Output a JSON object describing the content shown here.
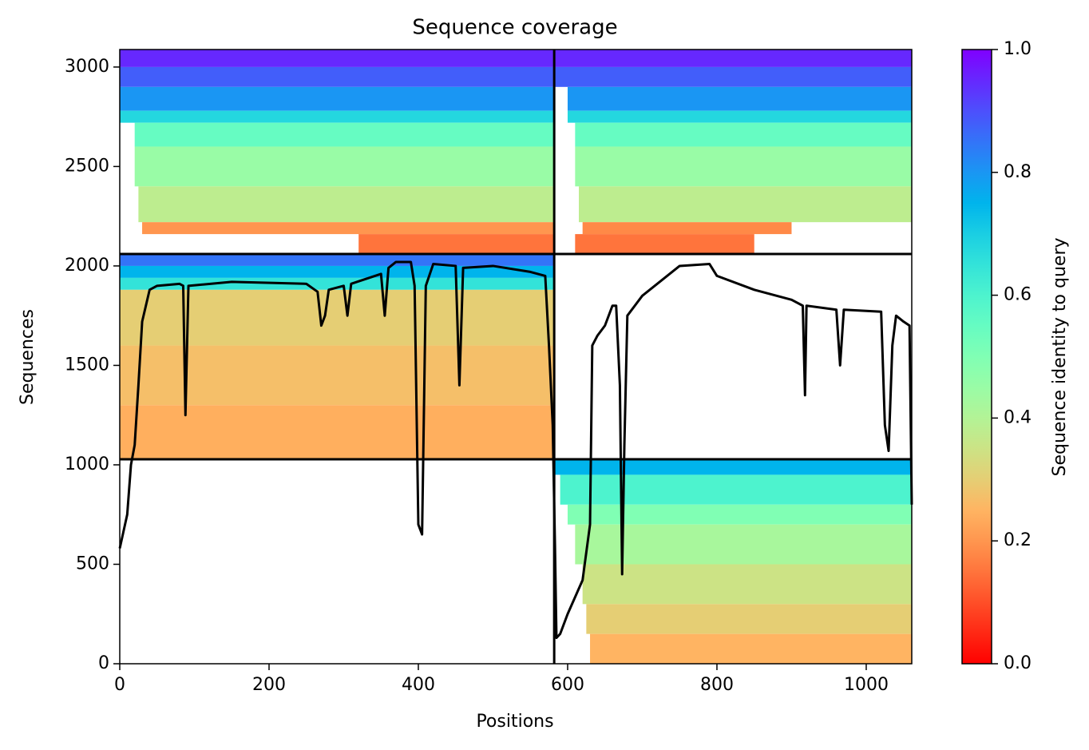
{
  "chart_data": {
    "type": "coverage",
    "title": "Sequence coverage",
    "x_label": "Positions",
    "y_label": "Sequences",
    "colorbar_label": "Sequence identity to query",
    "xlim": [
      0,
      1061
    ],
    "ylim": [
      0,
      3088
    ],
    "xticks": [
      0,
      200,
      400,
      600,
      800,
      1000
    ],
    "yticks": [
      0,
      500,
      1000,
      1500,
      2000,
      2500,
      3000
    ],
    "clim": [
      0,
      1
    ],
    "cticks": [
      {
        "value": 0,
        "label": "0.0"
      },
      0.2,
      0.4,
      0.6,
      0.8,
      {
        "value": 1,
        "label": "1.0"
      }
    ],
    "boundaries": {
      "x": [
        582
      ],
      "y": [
        1028,
        2060
      ]
    },
    "heatmap": [
      {
        "x": [
          0,
          582
        ],
        "y": [
          3000,
          3088
        ],
        "identity": 0.95
      },
      {
        "x": [
          0,
          582
        ],
        "y": [
          2900,
          3000
        ],
        "identity": 0.88
      },
      {
        "x": [
          0,
          582
        ],
        "y": [
          2780,
          2900
        ],
        "identity": 0.8
      },
      {
        "x": [
          0,
          582
        ],
        "y": [
          2720,
          2780
        ],
        "identity": 0.68
      },
      {
        "x": [
          20,
          582
        ],
        "y": [
          2600,
          2720
        ],
        "identity": 0.55
      },
      {
        "x": [
          20,
          582
        ],
        "y": [
          2400,
          2600
        ],
        "identity": 0.45
      },
      {
        "x": [
          25,
          582
        ],
        "y": [
          2220,
          2400
        ],
        "identity": 0.38
      },
      {
        "x": [
          30,
          582
        ],
        "y": [
          2160,
          2220
        ],
        "identity": 0.2
      },
      {
        "x": [
          320,
          582
        ],
        "y": [
          2060,
          2160
        ],
        "identity": 0.15
      },
      {
        "x": [
          582,
          1061
        ],
        "y": [
          3000,
          3088
        ],
        "identity": 0.95
      },
      {
        "x": [
          582,
          1061
        ],
        "y": [
          2900,
          3000
        ],
        "identity": 0.88
      },
      {
        "x": [
          600,
          1061
        ],
        "y": [
          2780,
          2900
        ],
        "identity": 0.8
      },
      {
        "x": [
          600,
          1061
        ],
        "y": [
          2720,
          2780
        ],
        "identity": 0.68
      },
      {
        "x": [
          610,
          1061
        ],
        "y": [
          2600,
          2720
        ],
        "identity": 0.55
      },
      {
        "x": [
          610,
          1061
        ],
        "y": [
          2400,
          2600
        ],
        "identity": 0.45
      },
      {
        "x": [
          615,
          1061
        ],
        "y": [
          2220,
          2400
        ],
        "identity": 0.38
      },
      {
        "x": [
          620,
          900
        ],
        "y": [
          2160,
          2220
        ],
        "identity": 0.18
      },
      {
        "x": [
          610,
          850
        ],
        "y": [
          2060,
          2160
        ],
        "identity": 0.15
      },
      {
        "x": [
          0,
          582
        ],
        "y": [
          2000,
          2060
        ],
        "identity": 0.85
      },
      {
        "x": [
          0,
          582
        ],
        "y": [
          1940,
          2000
        ],
        "identity": 0.75
      },
      {
        "x": [
          0,
          582
        ],
        "y": [
          1880,
          1940
        ],
        "identity": 0.65
      },
      {
        "x": [
          0,
          582
        ],
        "y": [
          1600,
          1880
        ],
        "identity": 0.3
      },
      {
        "x": [
          0,
          582
        ],
        "y": [
          1300,
          1600
        ],
        "identity": 0.27
      },
      {
        "x": [
          0,
          582
        ],
        "y": [
          1028,
          1300
        ],
        "identity": 0.24
      },
      {
        "x": [
          582,
          1061
        ],
        "y": [
          950,
          1028
        ],
        "identity": 0.75
      },
      {
        "x": [
          590,
          1061
        ],
        "y": [
          800,
          950
        ],
        "identity": 0.6
      },
      {
        "x": [
          600,
          1061
        ],
        "y": [
          700,
          800
        ],
        "identity": 0.5
      },
      {
        "x": [
          610,
          1061
        ],
        "y": [
          500,
          700
        ],
        "identity": 0.42
      },
      {
        "x": [
          620,
          1061
        ],
        "y": [
          300,
          500
        ],
        "identity": 0.35
      },
      {
        "x": [
          625,
          1061
        ],
        "y": [
          150,
          300
        ],
        "identity": 0.3
      },
      {
        "x": [
          630,
          1061
        ],
        "y": [
          0,
          150
        ],
        "identity": 0.25
      }
    ],
    "coverage": {
      "x": [
        0,
        10,
        15,
        20,
        25,
        30,
        35,
        40,
        50,
        80,
        85,
        88,
        92,
        150,
        250,
        265,
        270,
        275,
        280,
        300,
        305,
        310,
        350,
        355,
        360,
        370,
        390,
        395,
        400,
        405,
        410,
        420,
        450,
        455,
        460,
        500,
        550,
        570,
        575,
        580,
        583,
        585,
        590,
        600,
        620,
        630,
        633,
        640,
        650,
        660,
        665,
        670,
        673,
        676,
        680,
        700,
        750,
        790,
        800,
        850,
        900,
        915,
        918,
        920,
        960,
        965,
        970,
        1020,
        1025,
        1030,
        1035,
        1040,
        1050,
        1058,
        1061
      ],
      "values": [
        580,
        750,
        1000,
        1100,
        1400,
        1720,
        1800,
        1880,
        1900,
        1910,
        1900,
        1250,
        1900,
        1920,
        1910,
        1870,
        1700,
        1750,
        1880,
        1900,
        1750,
        1910,
        1960,
        1750,
        1990,
        2020,
        2020,
        1900,
        700,
        650,
        1900,
        2010,
        2000,
        1400,
        1990,
        2000,
        1970,
        1950,
        1600,
        1200,
        600,
        130,
        150,
        250,
        420,
        700,
        1600,
        1650,
        1700,
        1800,
        1800,
        1400,
        450,
        1100,
        1750,
        1850,
        2000,
        2010,
        1950,
        1880,
        1830,
        1800,
        1350,
        1800,
        1780,
        1500,
        1780,
        1770,
        1200,
        1070,
        1600,
        1750,
        1720,
        1700,
        800
      ],
      "color": "#000000"
    }
  }
}
